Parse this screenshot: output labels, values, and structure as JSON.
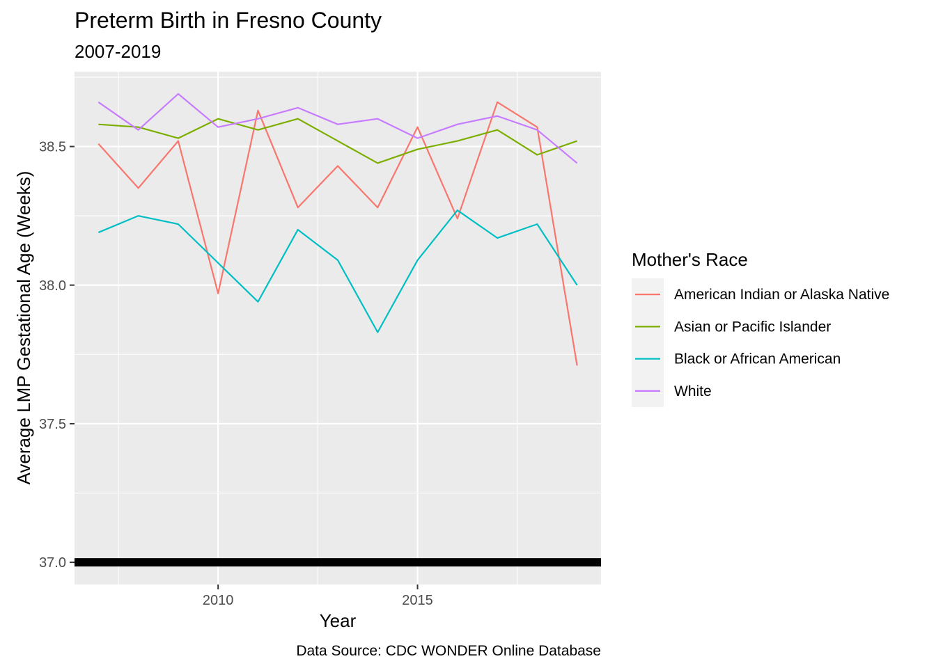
{
  "chart_data": {
    "type": "line",
    "title": "Preterm Birth in Fresno County",
    "subtitle": "2007-2019",
    "xlabel": "Year",
    "ylabel": "Average LMP Gestational Age (Weeks)",
    "caption": "Data Source: CDC WONDER Online Database",
    "xlim": [
      2006.4,
      2019.6
    ],
    "ylim": [
      36.92,
      38.77
    ],
    "x_ticks": [
      2010,
      2015
    ],
    "x_minor": [
      2007.5,
      2012.5,
      2017.5
    ],
    "y_ticks": [
      37.0,
      37.5,
      38.0,
      38.5
    ],
    "y_tick_labels": [
      "37.0",
      "37.5",
      "38.0",
      "38.5"
    ],
    "grid": true,
    "reference_line": {
      "y": 37.0,
      "color": "#000000"
    },
    "legend": {
      "title": "Mother's Race",
      "position": "right"
    },
    "x": [
      2007,
      2008,
      2009,
      2010,
      2011,
      2012,
      2013,
      2014,
      2015,
      2016,
      2017,
      2018,
      2019
    ],
    "series": [
      {
        "name": "American Indian or Alaska Native",
        "color": "#F8766D",
        "values": [
          38.51,
          38.35,
          38.52,
          37.97,
          38.63,
          38.28,
          38.43,
          38.28,
          38.57,
          38.24,
          38.66,
          38.57,
          37.71
        ]
      },
      {
        "name": "Asian or Pacific Islander",
        "color": "#7CAE00",
        "values": [
          38.58,
          38.57,
          38.53,
          38.6,
          38.56,
          38.6,
          38.52,
          38.44,
          38.49,
          38.52,
          38.56,
          38.47,
          38.52
        ]
      },
      {
        "name": "Black or African American",
        "color": "#00BFC4",
        "values": [
          38.19,
          38.25,
          38.22,
          38.08,
          37.94,
          38.2,
          38.09,
          37.83,
          38.09,
          38.27,
          38.17,
          38.22,
          38.0
        ]
      },
      {
        "name": "White",
        "color": "#C77CFF",
        "values": [
          38.66,
          38.56,
          38.69,
          38.57,
          38.6,
          38.64,
          38.58,
          38.6,
          38.53,
          38.58,
          38.61,
          38.56,
          38.44
        ]
      }
    ]
  }
}
